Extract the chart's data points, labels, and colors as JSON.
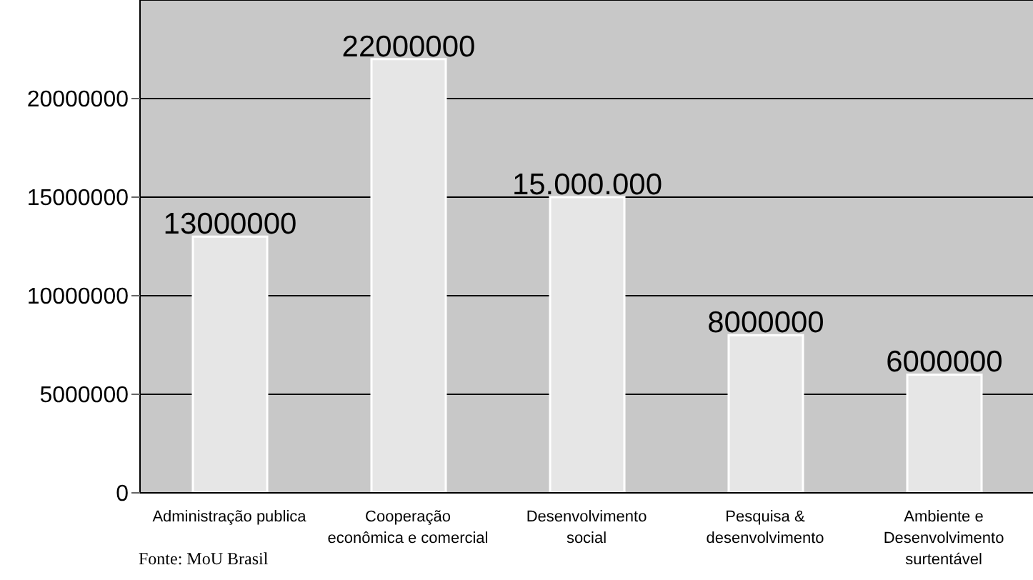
{
  "chart_data": {
    "type": "bar",
    "categories": [
      "Administração publica",
      "Cooperação\neconômica e comercial",
      "Desenvolvimento\nsocial",
      "Pesquisa &\ndesenvolvimento",
      "Ambiente e\nDesenvolvimento\nsurtentável"
    ],
    "values": [
      13000000,
      22000000,
      15000000,
      8000000,
      6000000
    ],
    "value_labels": [
      "13000000",
      "22000000",
      "15.000.000",
      "8000000",
      "6000000"
    ],
    "color": "#e6e6e6",
    "ylim": [
      0,
      25000000
    ],
    "yticks": [
      0,
      5000000,
      10000000,
      15000000,
      20000000
    ],
    "grid": "y",
    "annotations": [
      "Fonte: MoU Brasil"
    ]
  }
}
